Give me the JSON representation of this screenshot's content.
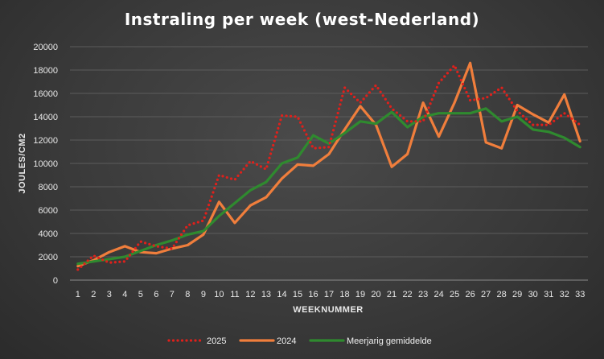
{
  "chart_data": {
    "type": "line",
    "title": "Instraling per week (west-Nederland)",
    "xlabel": "WEEKNUMMER",
    "ylabel": "JOULES/CM2",
    "ylim": [
      0,
      20000
    ],
    "yticks": [
      0,
      2000,
      4000,
      6000,
      8000,
      10000,
      12000,
      14000,
      16000,
      18000,
      20000
    ],
    "x": [
      1,
      2,
      3,
      4,
      5,
      6,
      7,
      8,
      9,
      10,
      11,
      12,
      13,
      14,
      15,
      16,
      17,
      18,
      19,
      20,
      21,
      22,
      23,
      24,
      25,
      26,
      27,
      28,
      29,
      30,
      31,
      32,
      33
    ],
    "grid": true,
    "legend_position": "bottom",
    "series": [
      {
        "name": "2025",
        "color": "#e0201b",
        "style": "dotted",
        "values": [
          900,
          2100,
          1500,
          1600,
          3300,
          2900,
          2700,
          4700,
          5100,
          9000,
          8600,
          10200,
          9500,
          14100,
          14000,
          11300,
          11400,
          16500,
          15200,
          16700,
          14700,
          13600,
          13600,
          16900,
          18400,
          15400,
          15600,
          16500,
          14500,
          13300,
          13300,
          14300,
          13300
        ]
      },
      {
        "name": "2024",
        "color": "#f07e3c",
        "style": "solid",
        "values": [
          1200,
          1700,
          2400,
          2900,
          2400,
          2300,
          2700,
          3000,
          3900,
          6700,
          4900,
          6400,
          7100,
          8700,
          9900,
          9800,
          10800,
          12900,
          14900,
          13300,
          9700,
          10800,
          15200,
          12300,
          15200,
          18600,
          11800,
          11300,
          15000,
          14200,
          13500,
          15900,
          11900
        ]
      },
      {
        "name": "Meerjarig gemiddelde",
        "color": "#2f8a2f",
        "style": "solid",
        "values": [
          1400,
          1600,
          1800,
          2000,
          2500,
          3000,
          3400,
          3900,
          4200,
          5500,
          6600,
          7700,
          8400,
          10000,
          10500,
          12400,
          11700,
          12600,
          13600,
          13400,
          14400,
          13100,
          14000,
          14300,
          14300,
          14300,
          14700,
          13600,
          14000,
          12900,
          12700,
          12200,
          11400
        ]
      }
    ]
  }
}
